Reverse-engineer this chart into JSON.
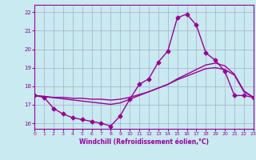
{
  "background_color": "#c8eaf0",
  "grid_color": "#aaaacc",
  "line_color": "#990099",
  "xlabel": "Windchill (Refroidissement éolien,°C)",
  "ylim": [
    15.7,
    22.4
  ],
  "xlim": [
    0,
    23
  ],
  "yticks": [
    16,
    17,
    18,
    19,
    20,
    21,
    22
  ],
  "xticks": [
    0,
    1,
    2,
    3,
    4,
    5,
    6,
    7,
    8,
    9,
    10,
    11,
    12,
    13,
    14,
    15,
    16,
    17,
    18,
    19,
    20,
    21,
    22,
    23
  ],
  "series": [
    {
      "x": [
        0,
        1,
        2,
        3,
        4,
        5,
        6,
        7,
        8,
        9,
        10,
        11,
        12,
        13,
        14,
        15,
        16,
        17,
        18,
        19,
        20,
        21,
        22,
        23
      ],
      "y": [
        17.5,
        17.4,
        16.8,
        16.5,
        16.3,
        16.2,
        16.1,
        16.0,
        15.85,
        16.4,
        17.3,
        18.1,
        18.4,
        19.3,
        19.9,
        21.7,
        21.9,
        21.3,
        19.8,
        19.4,
        18.8,
        17.5,
        17.5,
        17.4
      ],
      "marker": "D",
      "markersize": 2.5,
      "linewidth": 1.0
    },
    {
      "x": [
        0,
        1,
        2,
        3,
        4,
        5,
        6,
        7,
        8,
        9,
        10,
        11,
        12,
        13,
        14,
        15,
        16,
        17,
        18,
        19,
        20,
        21,
        22,
        23
      ],
      "y": [
        17.5,
        17.45,
        17.4,
        17.4,
        17.35,
        17.35,
        17.3,
        17.3,
        17.25,
        17.3,
        17.4,
        17.55,
        17.7,
        17.9,
        18.1,
        18.35,
        18.55,
        18.75,
        18.95,
        19.0,
        18.9,
        18.6,
        17.7,
        17.4
      ],
      "marker": null,
      "linewidth": 1.0
    },
    {
      "x": [
        0,
        1,
        2,
        3,
        4,
        5,
        6,
        7,
        8,
        9,
        10,
        11,
        12,
        13,
        14,
        15,
        16,
        17,
        18,
        19,
        20,
        21,
        22,
        23
      ],
      "y": [
        17.5,
        17.44,
        17.38,
        17.32,
        17.26,
        17.2,
        17.14,
        17.08,
        17.02,
        17.1,
        17.3,
        17.5,
        17.7,
        17.9,
        18.1,
        18.4,
        18.65,
        18.9,
        19.15,
        19.25,
        19.1,
        18.65,
        17.75,
        17.4
      ],
      "marker": null,
      "linewidth": 1.0
    }
  ]
}
